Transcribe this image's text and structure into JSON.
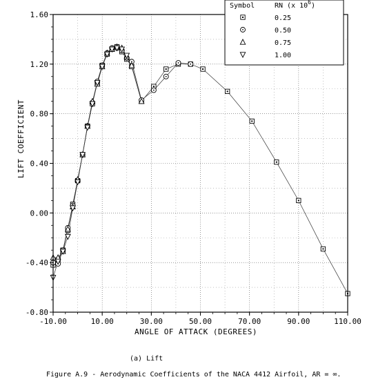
{
  "chart_data": {
    "type": "scatter",
    "xlabel": "ANGLE OF ATTACK   (DEGREES)",
    "ylabel": "LIFT COEFFICIENT",
    "xlim": [
      -10,
      110
    ],
    "ylim": [
      -0.8,
      1.6
    ],
    "xticks": [
      "-10.00",
      "10.00",
      "30.00",
      "50.00",
      "70.00",
      "90.00",
      "110.00"
    ],
    "yticks": [
      "-0.80",
      "-0.40",
      "0.00",
      "0.40",
      "0.80",
      "1.20",
      "1.60"
    ],
    "grid": true,
    "legend_position": "top-right",
    "legend_headers": [
      "Symbol",
      "RN (x 10^6)"
    ],
    "series": [
      {
        "name": "0.25",
        "marker": "square",
        "x": [
          -10,
          -8,
          -6,
          -4,
          -2,
          0,
          2,
          4,
          6,
          8,
          10,
          12,
          14,
          16,
          18,
          20,
          22,
          26,
          31,
          36,
          41,
          46,
          51,
          61,
          71,
          81,
          90,
          100,
          110
        ],
        "y": [
          -0.42,
          -0.38,
          -0.3,
          -0.14,
          0.07,
          0.26,
          0.47,
          0.7,
          0.88,
          1.05,
          1.19,
          1.28,
          1.32,
          1.34,
          1.3,
          1.24,
          1.18,
          0.9,
          1.02,
          1.16,
          1.2,
          1.2,
          1.16,
          0.98,
          0.74,
          0.41,
          0.1,
          -0.29,
          -0.65
        ]
      },
      {
        "name": "0.50",
        "marker": "circle",
        "x": [
          -10,
          -8,
          -6,
          -4,
          -2,
          0,
          2,
          4,
          6,
          8,
          10,
          12,
          14,
          16,
          18,
          20,
          22,
          26,
          31,
          36,
          41,
          46
        ],
        "y": [
          -0.4,
          -0.41,
          -0.3,
          -0.12,
          0.06,
          0.26,
          0.47,
          0.7,
          0.89,
          1.06,
          1.19,
          1.29,
          1.33,
          1.33,
          1.31,
          1.25,
          1.22,
          0.91,
          0.99,
          1.1,
          1.21,
          1.2
        ]
      },
      {
        "name": "0.75",
        "marker": "triangle-up",
        "x": [
          -10,
          -8,
          -6,
          -4,
          -2,
          0,
          2,
          4,
          6,
          8,
          10,
          12,
          14,
          16,
          18,
          20,
          22,
          26
        ],
        "y": [
          -0.36,
          -0.36,
          -0.31,
          -0.13,
          0.05,
          0.27,
          0.47,
          0.7,
          0.9,
          1.04,
          1.18,
          1.29,
          1.32,
          1.34,
          1.33,
          1.26,
          1.19,
          0.9
        ]
      },
      {
        "name": "1.00",
        "marker": "triangle-down",
        "x": [
          -10,
          -8,
          -6,
          -4,
          -2,
          0,
          2,
          4,
          6,
          8,
          10,
          12,
          14,
          16,
          18,
          20
        ],
        "y": [
          -0.52,
          -0.39,
          -0.31,
          -0.19,
          0.04,
          0.25,
          0.47,
          0.69,
          0.88,
          1.05,
          1.18,
          1.28,
          1.32,
          1.33,
          1.32,
          1.27
        ]
      }
    ]
  },
  "caption": {
    "subtitle": "(a)  Lift",
    "figure": "Figure A.9 - Aerodynamic Coefficients of the NACA 4412 Airfoil, AR = ∞."
  }
}
